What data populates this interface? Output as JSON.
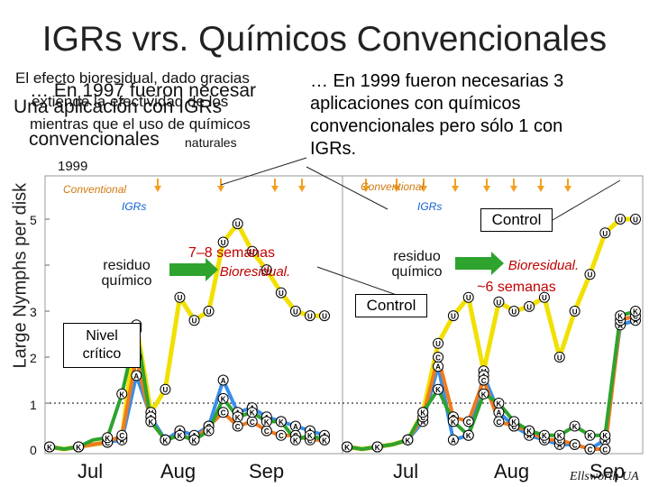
{
  "title": "IGRs vrs. Químicos Convencionales",
  "overlapping_text": {
    "line1": "El efecto bioresidual, dado gracias",
    "line2": "… En 1997 fueron necesar",
    "line3": "extiende la efectividad de los",
    "line4": "Una aplicación con IGRs",
    "line5": "mientras que el uso de químicos",
    "line6": "naturales",
    "line7": "convencionales",
    "year": "1999"
  },
  "callout": {
    "line1": "… En 1999 fueron necesarias 3",
    "line2": "aplicaciones con químicos",
    "line3": "convencionales pero sólo 1 con",
    "line4": "IGRs."
  },
  "legend_left": {
    "conventional": "Conventional",
    "igrs": "IGRs"
  },
  "legend_right": {
    "conventional": "Conventional",
    "igrs": "IGRs"
  },
  "labels": {
    "residuo1": "residuo\nquímico",
    "semanas1": "7–8 semanas",
    "bioresidual1": "Bioresidual.",
    "residuo2": "residuo\nquímico",
    "bioresidual2": "Bioresidual.",
    "semanas2": "~6 semanas",
    "control_top": "Control",
    "control_mid": "Control",
    "nivel": "Nivel\ncrítico"
  },
  "axis": {
    "ylabel": "Large Nymphs per disk",
    "yticks": [
      "0",
      "1",
      "2",
      "3",
      "4",
      "5"
    ],
    "xticks_left": [
      "Jul",
      "Aug",
      "Sep"
    ],
    "xticks_right": [
      "Jul",
      "Aug",
      "Sep"
    ]
  },
  "credit": "Ellsworth UA",
  "colors": {
    "yellow": "#f2e000",
    "green": "#2ea32e",
    "blue": "#3a8ee8",
    "orange": "#f07a1e",
    "arrow": "#f2a020"
  },
  "chart_data": [
    {
      "type": "line",
      "x": [
        0,
        1,
        2,
        3,
        4,
        5,
        6,
        7,
        8,
        9,
        10,
        11,
        12,
        13,
        14,
        15,
        16,
        17,
        18,
        19
      ],
      "series": [
        {
          "name": "K",
          "values": [
            0.05,
            0,
            0.05,
            0.2,
            0.25,
            1.2,
            2.6,
            0.6,
            0.2,
            0.3,
            0.2,
            0.4,
            1.1,
            0.7,
            0.8,
            0.6,
            0.6,
            0.2,
            0.3,
            0.2
          ]
        },
        {
          "name": "C",
          "values": [
            0.05,
            0,
            0.05,
            0.1,
            0.15,
            0.3,
            2.0,
            0.6,
            0.2,
            0.3,
            0.2,
            0.5,
            0.8,
            0.5,
            0.6,
            0.4,
            0.3,
            0.3,
            0.2,
            0.2
          ]
        },
        {
          "name": "A",
          "values": [
            0.05,
            0,
            0.05,
            0.1,
            0.15,
            0.2,
            1.6,
            0.7,
            0.2,
            0.4,
            0.3,
            0.5,
            1.5,
            0.8,
            0.9,
            0.7,
            0.6,
            0.5,
            0.4,
            0.3
          ]
        },
        {
          "name": "U",
          "values": [
            0.05,
            0,
            0.05,
            0.1,
            0.15,
            0.25,
            2.7,
            0.8,
            1.3,
            3.3,
            2.8,
            3.0,
            4.5,
            4.9,
            4.3,
            3.9,
            3.4,
            3.0,
            2.9,
            2.9
          ]
        }
      ]
    },
    {
      "type": "line",
      "x": [
        0,
        1,
        2,
        3,
        4,
        5,
        6,
        7,
        8,
        9,
        10,
        11,
        12,
        13,
        14,
        15,
        16,
        17,
        18,
        19
      ],
      "series": [
        {
          "name": "K",
          "values": [
            0.05,
            0,
            0.05,
            0.1,
            0.2,
            0.8,
            1.3,
            0.6,
            0.3,
            1.2,
            1.0,
            0.6,
            0.4,
            0.3,
            0.3,
            0.5,
            0.3,
            0.3,
            2.9,
            3.0
          ]
        },
        {
          "name": "C",
          "values": [
            0.05,
            0,
            0.05,
            0.1,
            0.2,
            0.7,
            2.0,
            0.7,
            0.6,
            1.5,
            0.6,
            0.5,
            0.4,
            0.2,
            0.2,
            0.1,
            0.0,
            0.0,
            2.8,
            2.9
          ]
        },
        {
          "name": "A",
          "values": [
            0.05,
            0,
            0.05,
            0.1,
            0.2,
            0.6,
            1.8,
            0.2,
            0.3,
            1.6,
            0.8,
            0.5,
            0.3,
            0.2,
            0.1,
            0.1,
            0.0,
            0.2,
            2.7,
            2.8
          ]
        },
        {
          "name": "U",
          "values": [
            0.05,
            0,
            0.05,
            0.1,
            0.2,
            0.8,
            2.3,
            2.9,
            3.3,
            1.7,
            3.2,
            3.0,
            3.1,
            3.3,
            2.0,
            3.0,
            3.8,
            4.7,
            5.0,
            5.0
          ]
        }
      ]
    }
  ]
}
